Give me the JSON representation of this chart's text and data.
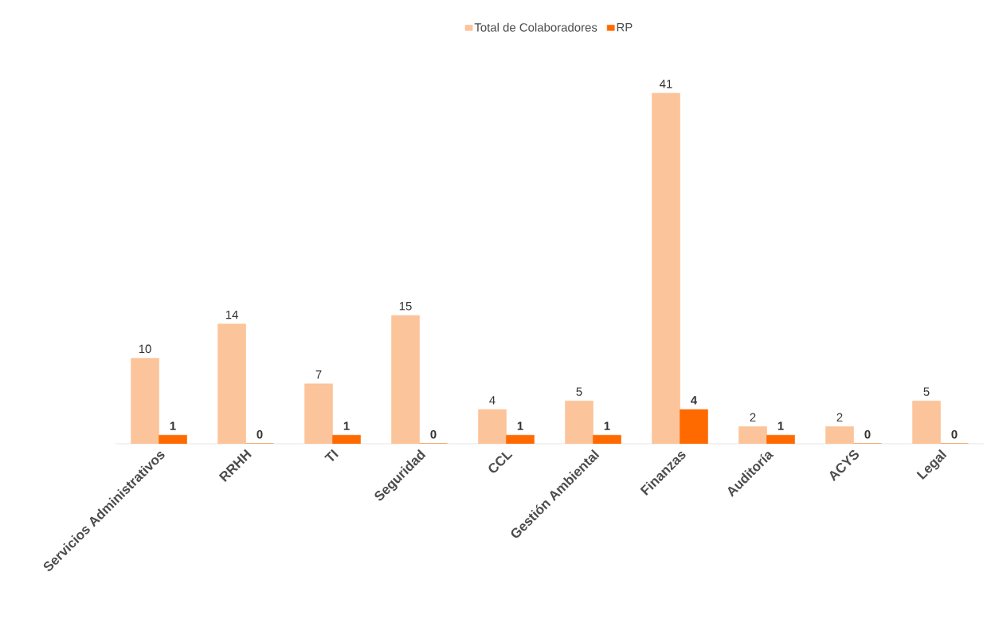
{
  "chart_data": {
    "type": "bar",
    "categories": [
      "Servicios Administrativos",
      "RRHH",
      "TI",
      "Seguridad",
      "CCL",
      "Gestión Ambiental",
      "Finanzas",
      "Auditoría",
      "ACYS",
      "Legal"
    ],
    "series": [
      {
        "name": "Total de Colaboradores",
        "color": "#fcc49a",
        "values": [
          10,
          14,
          7,
          15,
          4,
          5,
          41,
          2,
          2,
          5
        ]
      },
      {
        "name": "RP",
        "color": "#ff6a00",
        "values": [
          1,
          0,
          1,
          0,
          1,
          1,
          4,
          1,
          0,
          0
        ]
      }
    ],
    "data_labels": true,
    "legend": "top"
  }
}
